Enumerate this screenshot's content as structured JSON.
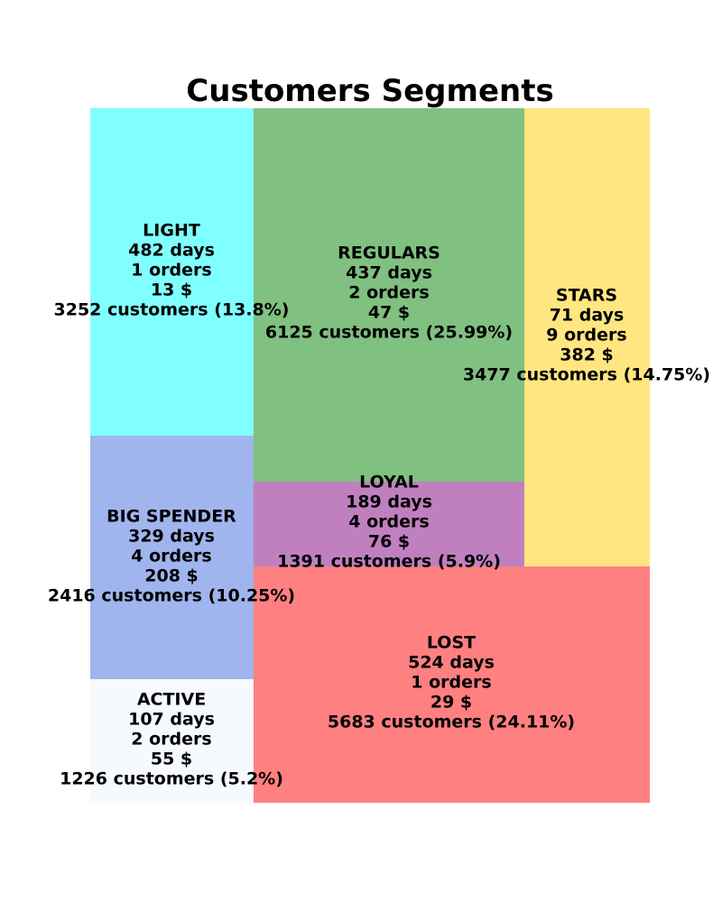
{
  "chart_data": {
    "type": "treemap",
    "title": "Customers Segments",
    "segments": [
      {
        "name": "LIGHT",
        "days": "482 days",
        "orders": "1 orders",
        "spend": "13 $",
        "customers_label": "3252 customers (13.8%)",
        "customers": 3252,
        "share_pct": 13.8,
        "color": "#80FFFF"
      },
      {
        "name": "BIG SPENDER",
        "days": "329 days",
        "orders": "4 orders",
        "spend": "208 $",
        "customers_label": "2416 customers (10.25%)",
        "customers": 2416,
        "share_pct": 10.25,
        "color": "#A0B4EE"
      },
      {
        "name": "ACTIVE",
        "days": "107 days",
        "orders": "2 orders",
        "spend": "55 $",
        "customers_label": "1226 customers (5.2%)",
        "customers": 1226,
        "share_pct": 5.2,
        "color": "#F6FAFE"
      },
      {
        "name": "REGULARS",
        "days": "437 days",
        "orders": "2 orders",
        "spend": "47 $",
        "customers_label": "6125 customers (25.99%)",
        "customers": 6125,
        "share_pct": 25.99,
        "color": "#80C080"
      },
      {
        "name": "LOYAL",
        "days": "189 days",
        "orders": "4 orders",
        "spend": "76 $",
        "customers_label": "1391 customers (5.9%)",
        "customers": 1391,
        "share_pct": 5.9,
        "color": "#C080C0"
      },
      {
        "name": "STARS",
        "days": "71 days",
        "orders": "9 orders",
        "spend": "382 $",
        "customers_label": "3477 customers (14.75%)",
        "customers": 3477,
        "share_pct": 14.75,
        "color": "#FFE680"
      },
      {
        "name": "LOST",
        "days": "524 days",
        "orders": "1 orders",
        "spend": "29 $",
        "customers_label": "5683 customers (24.11%)",
        "customers": 5683,
        "share_pct": 24.11,
        "color": "#FF8080"
      }
    ]
  }
}
